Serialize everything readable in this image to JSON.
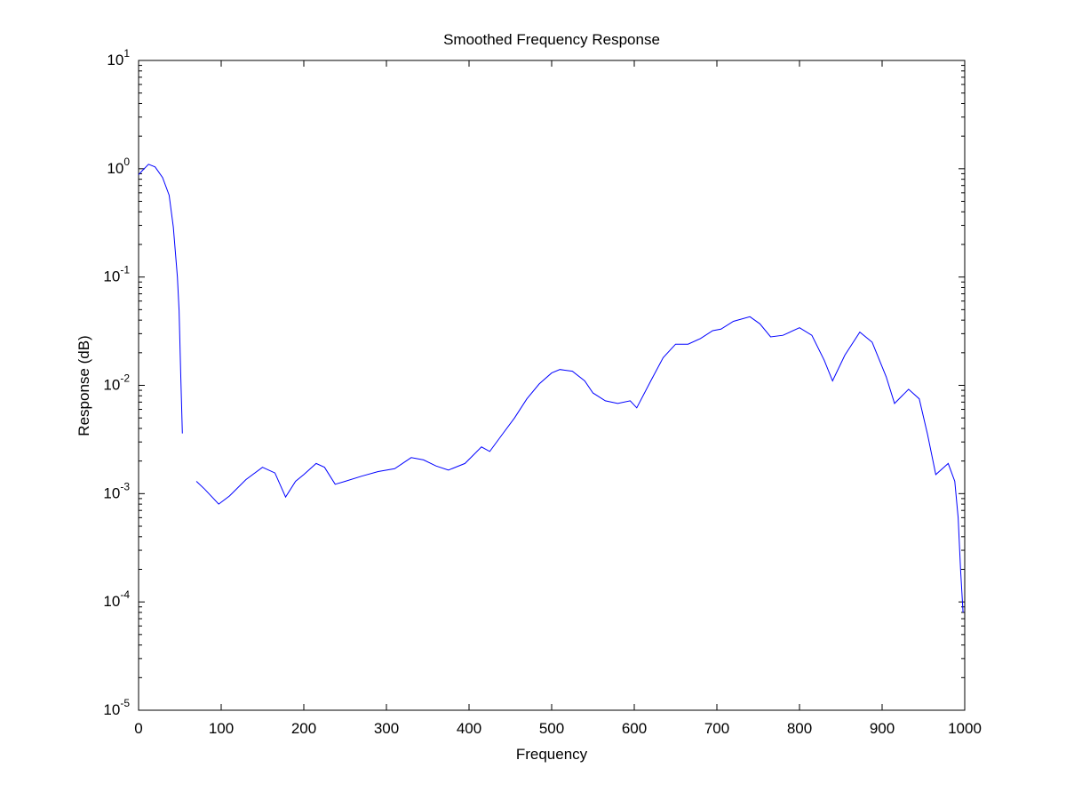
{
  "chart_data": {
    "type": "line",
    "title": "Smoothed Frequency Response",
    "xlabel": "Frequency",
    "ylabel": "Response (dB)",
    "xlim": [
      0,
      1000
    ],
    "ylim": [
      1e-05,
      10
    ],
    "yscale": "log",
    "grid": false,
    "x_ticks": [
      "0",
      "100",
      "200",
      "300",
      "400",
      "500",
      "600",
      "700",
      "800",
      "900",
      "1000"
    ],
    "y_ticks": [
      {
        "base": "10",
        "exp": "1"
      },
      {
        "base": "10",
        "exp": "0"
      },
      {
        "base": "10",
        "exp": "-1"
      },
      {
        "base": "10",
        "exp": "-2"
      },
      {
        "base": "10",
        "exp": "-3"
      },
      {
        "base": "10",
        "exp": "-4"
      },
      {
        "base": "10",
        "exp": "-5"
      }
    ],
    "line_color": "#0000ff",
    "series": [
      {
        "name": "segment-1",
        "points": [
          [
            0,
            0.88
          ],
          [
            4,
            0.95
          ],
          [
            12,
            1.1
          ],
          [
            20,
            1.04
          ],
          [
            29,
            0.83
          ],
          [
            37,
            0.57
          ],
          [
            42,
            0.29
          ],
          [
            47,
            0.1
          ],
          [
            49,
            0.049
          ],
          [
            51,
            0.013
          ],
          [
            53,
            0.0036
          ]
        ]
      },
      {
        "name": "segment-2",
        "points": [
          [
            70,
            0.0013
          ],
          [
            80,
            0.0011
          ],
          [
            97,
            0.0008
          ],
          [
            110,
            0.00095
          ],
          [
            130,
            0.00135
          ],
          [
            150,
            0.00175
          ],
          [
            165,
            0.00155
          ],
          [
            178,
            0.00093
          ],
          [
            190,
            0.0013
          ],
          [
            200,
            0.0015
          ],
          [
            215,
            0.0019
          ],
          [
            225,
            0.00175
          ],
          [
            238,
            0.00122
          ],
          [
            250,
            0.0013
          ],
          [
            270,
            0.00145
          ],
          [
            290,
            0.0016
          ],
          [
            310,
            0.0017
          ],
          [
            330,
            0.00215
          ],
          [
            345,
            0.00205
          ],
          [
            360,
            0.0018
          ],
          [
            375,
            0.00165
          ],
          [
            395,
            0.0019
          ],
          [
            415,
            0.0027
          ],
          [
            425,
            0.00245
          ],
          [
            440,
            0.0035
          ],
          [
            455,
            0.005
          ],
          [
            470,
            0.0075
          ],
          [
            485,
            0.0103
          ],
          [
            500,
            0.013
          ],
          [
            510,
            0.014
          ],
          [
            525,
            0.0135
          ],
          [
            540,
            0.011
          ],
          [
            550,
            0.0085
          ],
          [
            565,
            0.0072
          ],
          [
            580,
            0.0068
          ],
          [
            595,
            0.0072
          ],
          [
            603,
            0.0062
          ],
          [
            620,
            0.011
          ],
          [
            635,
            0.018
          ],
          [
            650,
            0.024
          ],
          [
            665,
            0.024
          ],
          [
            680,
            0.027
          ],
          [
            695,
            0.032
          ],
          [
            705,
            0.033
          ],
          [
            720,
            0.039
          ],
          [
            740,
            0.043
          ],
          [
            752,
            0.037
          ],
          [
            765,
            0.028
          ],
          [
            780,
            0.029
          ],
          [
            800,
            0.034
          ],
          [
            815,
            0.029
          ],
          [
            830,
            0.017
          ],
          [
            840,
            0.011
          ],
          [
            855,
            0.019
          ],
          [
            873,
            0.031
          ],
          [
            888,
            0.025
          ],
          [
            905,
            0.012
          ],
          [
            915,
            0.0068
          ],
          [
            932,
            0.0092
          ],
          [
            945,
            0.0075
          ],
          [
            955,
            0.0035
          ],
          [
            965,
            0.0015
          ],
          [
            980,
            0.0019
          ],
          [
            988,
            0.0013
          ],
          [
            992,
            0.0006
          ],
          [
            995,
            0.0002
          ],
          [
            998,
            8e-05
          ]
        ]
      }
    ]
  }
}
